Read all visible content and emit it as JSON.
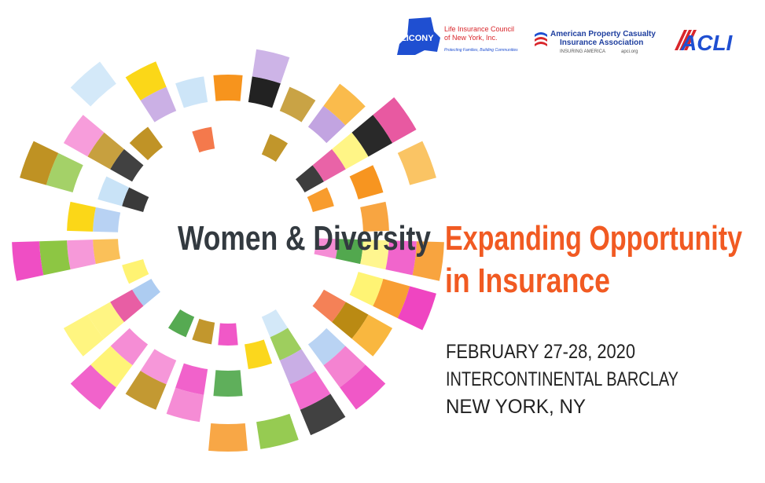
{
  "logos": {
    "licony": {
      "mark": "LICONY",
      "name": [
        "Life Insurance Council",
        "of New York, Inc."
      ],
      "tagline": "Protecting Families, Building Communities"
    },
    "apcia": {
      "name": [
        "American Property Casualty",
        "Insurance Association"
      ],
      "tagline": "INSURING AMERICA",
      "url": "apci.org"
    },
    "acli": {
      "mark": "ACLI"
    }
  },
  "headline": {
    "left": "Women & Diversity",
    "right": [
      "Expanding Opportunity",
      "in Insurance"
    ]
  },
  "details": [
    "FEBRUARY 27-28, 2020",
    "INTERCONTINENTAL BARCLAY",
    "NEW YORK, NY"
  ]
}
